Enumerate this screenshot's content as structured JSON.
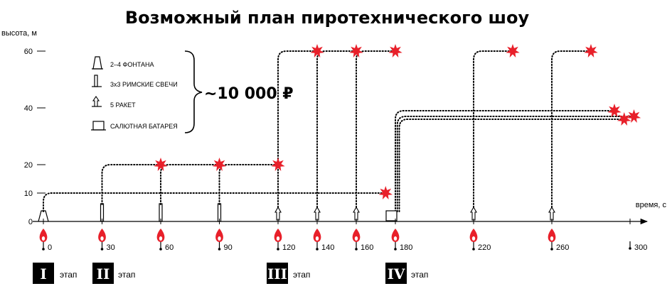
{
  "title": "Возможный план пиротехнического шоу",
  "axes": {
    "y_label": "высота, м",
    "x_label": "время, с",
    "y_ticks": [
      0,
      10,
      20,
      40,
      60
    ],
    "x_ticks": [
      0,
      30,
      60,
      90,
      120,
      140,
      160,
      180,
      220,
      260,
      300
    ]
  },
  "legend": {
    "items": [
      {
        "icon": "fountain-icon",
        "label": "2–4 ФОНТАНА"
      },
      {
        "icon": "roman-candle-icon",
        "label": "3х3 РИМСКИЕ СВЕЧИ"
      },
      {
        "icon": "rocket-icon",
        "label": "5 РАКЕТ"
      },
      {
        "icon": "battery-icon",
        "label": "САЛЮТНАЯ БАТАРЕЯ"
      }
    ],
    "price": "~10 000 ₽"
  },
  "stages": [
    {
      "numeral": "I",
      "word": "этап"
    },
    {
      "numeral": "II",
      "word": "этап"
    },
    {
      "numeral": "III",
      "word": "этап"
    },
    {
      "numeral": "IV",
      "word": "этап"
    }
  ],
  "colors": {
    "accent": "#e8202a",
    "ink": "#000000"
  },
  "chart_data": {
    "type": "scatter",
    "title": "Возможный план пиротехнического шоу",
    "xlabel": "время, с",
    "ylabel": "высота, м",
    "events": [
      {
        "launch_time": 0,
        "device": "fountain",
        "burst_time": 175,
        "burst_height": 10
      },
      {
        "launch_time": 30,
        "device": "roman-candle",
        "burst_time": 60,
        "burst_height": 20
      },
      {
        "launch_time": 60,
        "device": "roman-candle",
        "burst_time": 90,
        "burst_height": 20
      },
      {
        "launch_time": 90,
        "device": "roman-candle",
        "burst_time": 120,
        "burst_height": 20
      },
      {
        "launch_time": 120,
        "device": "rocket",
        "burst_time": 140,
        "burst_height": 60
      },
      {
        "launch_time": 140,
        "device": "rocket",
        "burst_time": 160,
        "burst_height": 60
      },
      {
        "launch_time": 160,
        "device": "rocket",
        "burst_time": 180,
        "burst_height": 60
      },
      {
        "launch_time": 180,
        "device": "battery",
        "burst_time": 292,
        "burst_height": 39
      },
      {
        "launch_time": 181,
        "device": "battery",
        "burst_time": 302,
        "burst_height": 37
      },
      {
        "launch_time": 182,
        "device": "battery",
        "burst_time": 297,
        "burst_height": 36
      },
      {
        "launch_time": 220,
        "device": "rocket",
        "burst_time": 240,
        "burst_height": 60
      },
      {
        "launch_time": 260,
        "device": "rocket",
        "burst_time": 280,
        "burst_height": 60
      }
    ]
  }
}
